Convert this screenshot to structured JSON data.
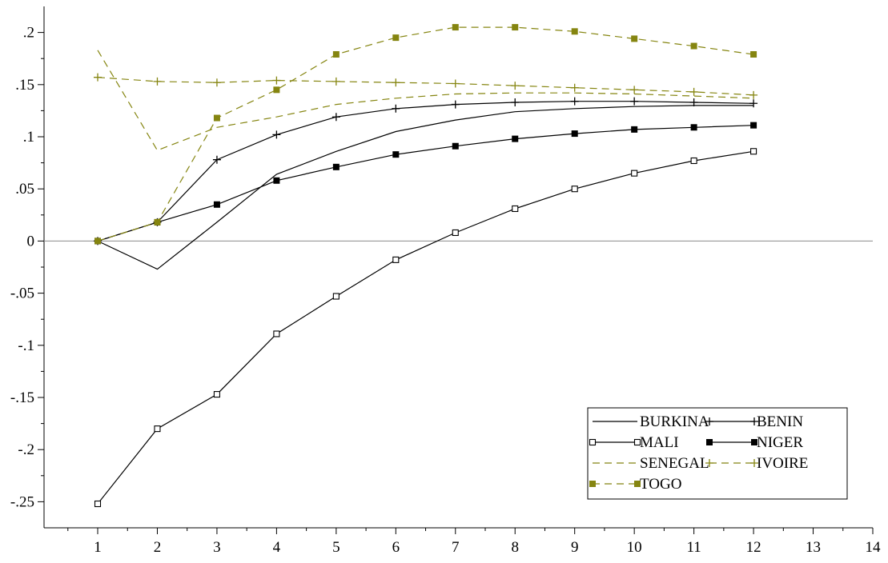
{
  "chart_data": {
    "type": "line",
    "title": "",
    "xlabel": "",
    "ylabel": "",
    "x": [
      1,
      2,
      3,
      4,
      5,
      6,
      7,
      8,
      9,
      10,
      11,
      12
    ],
    "xlim": [
      0.1,
      14
    ],
    "ylim": [
      -0.275,
      0.225
    ],
    "x_ticks": [
      1,
      2,
      3,
      4,
      5,
      6,
      7,
      8,
      9,
      10,
      11,
      12,
      13,
      14
    ],
    "x_tick_labels": [
      "1",
      "2",
      "3",
      "4",
      "5",
      "6",
      "7",
      "8",
      "9",
      "10",
      "11",
      "12",
      "13",
      "14"
    ],
    "y_ticks": [
      -0.25,
      -0.2,
      -0.15,
      -0.1,
      -0.05,
      0,
      0.05,
      0.1,
      0.15,
      0.2
    ],
    "y_tick_labels": [
      "-.25",
      "-.2",
      "-.15",
      "-.1",
      "-.05",
      "0",
      ".05",
      ".1",
      ".15",
      ".2"
    ],
    "zero_line": true,
    "grid": false,
    "legend_position": "bottom-right",
    "series": [
      {
        "name": "BURKINA",
        "color": "#000000",
        "dash": "solid",
        "marker": "none",
        "values": [
          0.0,
          -0.027,
          0.018,
          0.064,
          0.086,
          0.105,
          0.116,
          0.124,
          0.127,
          0.129,
          0.13,
          0.13
        ]
      },
      {
        "name": "BENIN",
        "color": "#000000",
        "dash": "solid",
        "marker": "plus",
        "values": [
          0.0,
          0.018,
          0.078,
          0.102,
          0.119,
          0.127,
          0.131,
          0.133,
          0.134,
          0.134,
          0.133,
          0.132
        ]
      },
      {
        "name": "MALI",
        "color": "#000000",
        "dash": "solid",
        "marker": "square-open",
        "values": [
          -0.252,
          -0.18,
          -0.147,
          -0.089,
          -0.053,
          -0.018,
          0.008,
          0.031,
          0.05,
          0.065,
          0.077,
          0.086
        ]
      },
      {
        "name": "NIGER",
        "color": "#000000",
        "dash": "solid",
        "marker": "square-filled",
        "values": [
          0.0,
          0.018,
          0.035,
          0.058,
          0.071,
          0.083,
          0.091,
          0.098,
          0.103,
          0.107,
          0.109,
          0.111
        ]
      },
      {
        "name": "SENEGAL",
        "color": "#858510",
        "dash": "dashed",
        "marker": "none",
        "values": [
          0.183,
          0.087,
          0.109,
          0.119,
          0.131,
          0.137,
          0.141,
          0.142,
          0.142,
          0.141,
          0.139,
          0.137
        ]
      },
      {
        "name": "IVOIRE",
        "color": "#858510",
        "dash": "dashed",
        "marker": "plus",
        "values": [
          0.157,
          0.153,
          0.152,
          0.154,
          0.153,
          0.152,
          0.151,
          0.149,
          0.147,
          0.145,
          0.143,
          0.14
        ]
      },
      {
        "name": "TOGO",
        "color": "#858510",
        "dash": "dashed",
        "marker": "square-filled",
        "values": [
          0.0,
          0.018,
          0.118,
          0.145,
          0.179,
          0.195,
          0.205,
          0.205,
          0.201,
          0.194,
          0.187,
          0.179
        ]
      }
    ]
  }
}
